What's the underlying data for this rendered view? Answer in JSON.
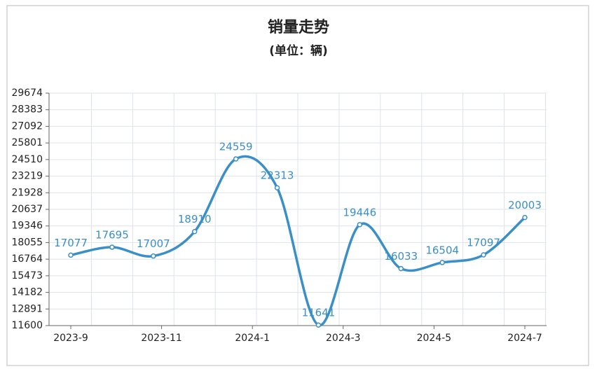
{
  "chart_data": {
    "type": "line",
    "title": "销量走势",
    "subtitle": "(单位：辆)",
    "x": [
      0,
      1,
      2,
      3,
      4,
      5,
      6,
      7,
      8,
      9,
      10,
      11
    ],
    "xlim": [
      0,
      11
    ],
    "xticks": [
      {
        "value": 0,
        "label": "2023-9"
      },
      {
        "value": 2.2,
        "label": "2023-11"
      },
      {
        "value": 4.4,
        "label": "2024-1"
      },
      {
        "value": 6.6,
        "label": "2024-3"
      },
      {
        "value": 8.8,
        "label": "2024-5"
      },
      {
        "value": 11,
        "label": "2024-7"
      }
    ],
    "series": [
      {
        "name": "销量",
        "color": "#3a8fc6",
        "values": [
          17077,
          17695,
          17007,
          18910,
          24559,
          22313,
          11641,
          19446,
          16033,
          16504,
          17097,
          20003
        ]
      }
    ],
    "ylim": [
      11600,
      29674
    ],
    "yticks": [
      11600,
      12891,
      14182,
      15473,
      16764,
      18055,
      19346,
      20637,
      21928,
      23219,
      24510,
      25801,
      27092,
      28383,
      29674
    ],
    "grid": true
  }
}
